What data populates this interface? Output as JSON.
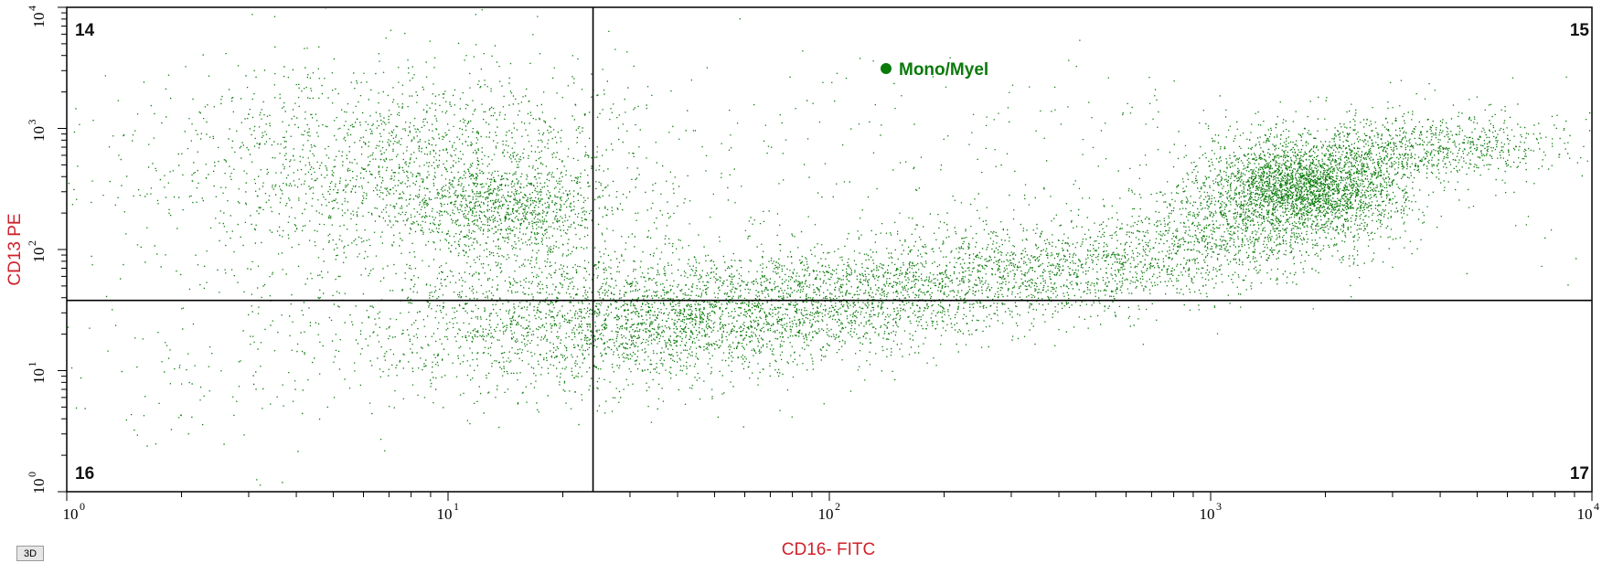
{
  "chart_data": {
    "type": "scatter",
    "xlabel": "CD16- FITC",
    "ylabel": "CD13 PE",
    "x_scale": "log",
    "y_scale": "log",
    "xlim": [
      1,
      10000
    ],
    "ylim": [
      1,
      10000
    ],
    "x_ticks": [
      {
        "base": "10",
        "exp": "0"
      },
      {
        "base": "10",
        "exp": "1"
      },
      {
        "base": "10",
        "exp": "2"
      },
      {
        "base": "10",
        "exp": "3"
      },
      {
        "base": "10",
        "exp": "4"
      }
    ],
    "y_ticks": [
      {
        "base": "10",
        "exp": "0"
      },
      {
        "base": "10",
        "exp": "1"
      },
      {
        "base": "10",
        "exp": "2"
      },
      {
        "base": "10",
        "exp": "3"
      },
      {
        "base": "10",
        "exp": "4"
      }
    ],
    "quadrant_gates": {
      "x": 24,
      "y": 38
    },
    "quadrant_labels": {
      "upper_left": "14",
      "upper_right": "15",
      "lower_left": "16",
      "lower_right": "17"
    },
    "series": [
      {
        "name": "Mono/Myel",
        "color": "#0a7a0a",
        "clusters": [
          {
            "center": [
              1750,
              320
            ],
            "spread_decades": [
              0.13,
              0.17
            ],
            "count": 2600
          },
          {
            "center": [
              3200,
              700
            ],
            "spread_decades": [
              0.22,
              0.14
            ],
            "count": 1100
          },
          {
            "center": [
              1200,
              140
            ],
            "spread_decades": [
              0.18,
              0.17
            ],
            "count": 800
          },
          {
            "center": [
              14,
              220
            ],
            "spread_decades": [
              0.13,
              0.2
            ],
            "count": 900
          },
          {
            "center": [
              7,
              500
            ],
            "spread_decades": [
              0.32,
              0.42
            ],
            "count": 1800
          },
          {
            "center": [
              22,
              25
            ],
            "spread_decades": [
              0.32,
              0.3
            ],
            "count": 1900
          },
          {
            "center": [
              60,
              30
            ],
            "spread_decades": [
              0.28,
              0.2
            ],
            "count": 1400
          },
          {
            "center": [
              160,
              50
            ],
            "spread_decades": [
              0.28,
              0.2
            ],
            "count": 1100
          },
          {
            "center": [
              450,
              75
            ],
            "spread_decades": [
              0.25,
              0.18
            ],
            "count": 1000
          },
          {
            "center": [
              3,
              15
            ],
            "spread_decades": [
              0.35,
              0.45
            ],
            "count": 200
          },
          {
            "center": [
              100,
              400
            ],
            "spread_decades": [
              1.0,
              0.5
            ],
            "count": 500
          }
        ]
      }
    ],
    "legend": {
      "label": "Mono/Myel",
      "position": "top-center"
    },
    "grid": false
  },
  "toolbar": {
    "view3d_label": "3D"
  }
}
